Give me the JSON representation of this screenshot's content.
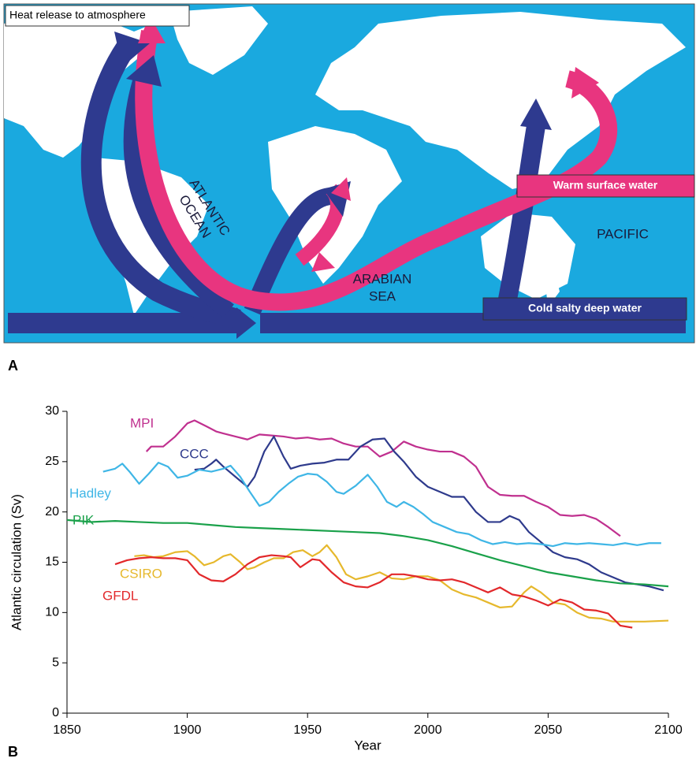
{
  "panel_labels": [
    "A",
    "B"
  ],
  "map": {
    "heat_label": "Heat release to atmosphere",
    "atlantic_label": [
      "ATLANTIC",
      "OCEAN"
    ],
    "arabian_label": [
      "ARABIAN",
      "SEA"
    ],
    "pacific_label": "PACIFIC",
    "warm_label": "Warm surface water",
    "cold_label": "Cold salty deep water"
  },
  "chart_data": {
    "type": "line",
    "x_label": "Year",
    "y_label": "Atlantic circulation (Sv)",
    "xlim": [
      1850,
      2100
    ],
    "xticks": [
      1850,
      1900,
      1950,
      2000,
      2050,
      2100
    ],
    "ylim": [
      0,
      30
    ],
    "yticks": [
      0,
      5,
      10,
      15,
      20,
      25,
      30
    ],
    "grid": false,
    "series": [
      {
        "name": "MPI",
        "color": "#c0308f",
        "x": [
          1883,
          1885,
          1890,
          1895,
          1900,
          1903,
          1908,
          1912,
          1915,
          1920,
          1925,
          1930,
          1935,
          1940,
          1945,
          1950,
          1955,
          1960,
          1965,
          1970,
          1975,
          1980,
          1985,
          1990,
          1995,
          2000,
          2005,
          2010,
          2015,
          2020,
          2025,
          2030,
          2035,
          2040,
          2045,
          2050,
          2055,
          2060,
          2065,
          2070,
          2075,
          2080
        ],
        "values": [
          26,
          26.5,
          26.5,
          27.5,
          28.8,
          29.1,
          28.5,
          28,
          27.8,
          27.5,
          27.2,
          27.7,
          27.6,
          27.5,
          27.3,
          27.4,
          27.2,
          27.3,
          26.8,
          26.5,
          26.5,
          25.5,
          26,
          27,
          26.5,
          26.2,
          26,
          26,
          25.5,
          24.5,
          22.5,
          21.7,
          21.6,
          21.6,
          21,
          20.5,
          19.7,
          19.6,
          19.7,
          19.3,
          18.5,
          17.6
        ]
      },
      {
        "name": "CCC",
        "color": "#2e3a8c",
        "x": [
          1903,
          1907,
          1910,
          1912,
          1915,
          1920,
          1925,
          1928,
          1932,
          1936,
          1940,
          1943,
          1947,
          1952,
          1957,
          1962,
          1967,
          1972,
          1977,
          1982,
          1986,
          1990,
          1995,
          2000,
          2005,
          2010,
          2015,
          2020,
          2025,
          2030,
          2034,
          2038,
          2042,
          2047,
          2052,
          2057,
          2062,
          2067,
          2072,
          2077,
          2082,
          2087,
          2092,
          2098
        ],
        "values": [
          24.2,
          24.3,
          24.8,
          25.2,
          24.5,
          23.5,
          22.5,
          23.5,
          26,
          27.5,
          25.5,
          24.3,
          24.6,
          24.8,
          24.9,
          25.2,
          25.2,
          26.5,
          27.2,
          27.3,
          26,
          25,
          23.5,
          22.5,
          22,
          21.5,
          21.5,
          20,
          19,
          19,
          19.6,
          19.2,
          18,
          17,
          16,
          15.5,
          15.3,
          14.8,
          14,
          13.5,
          13,
          12.8,
          12.6,
          12.2
        ]
      },
      {
        "name": "Hadley",
        "color": "#3fb6e6",
        "x": [
          1865,
          1870,
          1873,
          1876,
          1880,
          1884,
          1888,
          1892,
          1896,
          1900,
          1905,
          1910,
          1915,
          1918,
          1922,
          1926,
          1930,
          1934,
          1938,
          1942,
          1946,
          1950,
          1954,
          1958,
          1962,
          1965,
          1970,
          1975,
          1979,
          1983,
          1987,
          1990,
          1994,
          1998,
          2002,
          2007,
          2012,
          2017,
          2022,
          2027,
          2032,
          2037,
          2042,
          2047,
          2052,
          2057,
          2062,
          2067,
          2072,
          2077,
          2082,
          2087,
          2092,
          2097
        ],
        "values": [
          24,
          24.3,
          24.8,
          24,
          22.8,
          23.8,
          24.9,
          24.5,
          23.4,
          23.6,
          24.2,
          24,
          24.3,
          24.6,
          23.5,
          22,
          20.6,
          21,
          22,
          22.8,
          23.5,
          23.8,
          23.7,
          23,
          22,
          21.8,
          22.6,
          23.7,
          22.5,
          21,
          20.5,
          21,
          20.5,
          19.8,
          19,
          18.5,
          18,
          17.8,
          17.2,
          16.8,
          17,
          16.8,
          16.9,
          16.8,
          16.6,
          16.9,
          16.8,
          16.9,
          16.8,
          16.7,
          16.9,
          16.7,
          16.9,
          16.9
        ]
      },
      {
        "name": "PIK",
        "color": "#1aa14a",
        "x": [
          1850,
          1860,
          1870,
          1880,
          1890,
          1900,
          1910,
          1920,
          1930,
          1940,
          1950,
          1960,
          1970,
          1980,
          1990,
          2000,
          2010,
          2020,
          2030,
          2040,
          2050,
          2060,
          2070,
          2080,
          2090,
          2100
        ],
        "values": [
          19.2,
          19,
          19.1,
          19,
          18.9,
          18.9,
          18.7,
          18.5,
          18.4,
          18.3,
          18.2,
          18.1,
          18,
          17.9,
          17.6,
          17.2,
          16.6,
          15.9,
          15.2,
          14.6,
          14,
          13.6,
          13.2,
          12.9,
          12.8,
          12.6
        ]
      },
      {
        "name": "CSIRO",
        "color": "#e6b82c",
        "x": [
          1878,
          1882,
          1886,
          1890,
          1895,
          1900,
          1903,
          1907,
          1911,
          1915,
          1918,
          1922,
          1925,
          1928,
          1932,
          1936,
          1940,
          1944,
          1948,
          1952,
          1955,
          1958,
          1962,
          1966,
          1970,
          1975,
          1980,
          1985,
          1990,
          1995,
          2000,
          2005,
          2010,
          2015,
          2020,
          2025,
          2030,
          2035,
          2040,
          2043,
          2047,
          2052,
          2057,
          2062,
          2067,
          2072,
          2077,
          2082,
          2090,
          2100
        ],
        "values": [
          15.6,
          15.7,
          15.5,
          15.6,
          16,
          16.1,
          15.6,
          14.7,
          15,
          15.6,
          15.8,
          15,
          14.3,
          14.5,
          15,
          15.4,
          15.4,
          16,
          16.2,
          15.6,
          16,
          16.7,
          15.5,
          13.8,
          13.3,
          13.6,
          14,
          13.4,
          13.3,
          13.6,
          13.6,
          13.2,
          12.3,
          11.8,
          11.5,
          11,
          10.5,
          10.6,
          12,
          12.6,
          12,
          11,
          10.8,
          10,
          9.5,
          9.4,
          9.1,
          9.1,
          9.1,
          9.2
        ]
      },
      {
        "name": "GFDL",
        "color": "#e2282b",
        "x": [
          1870,
          1875,
          1880,
          1885,
          1890,
          1895,
          1900,
          1905,
          1910,
          1915,
          1920,
          1925,
          1930,
          1935,
          1940,
          1943,
          1947,
          1952,
          1955,
          1960,
          1965,
          1970,
          1975,
          1980,
          1985,
          1990,
          1995,
          2000,
          2005,
          2010,
          2015,
          2020,
          2025,
          2030,
          2035,
          2040,
          2045,
          2050,
          2055,
          2060,
          2065,
          2070,
          2075,
          2080,
          2085
        ],
        "values": [
          14.8,
          15.2,
          15.4,
          15.5,
          15.4,
          15.4,
          15.2,
          13.8,
          13.2,
          13.1,
          13.8,
          14.8,
          15.5,
          15.7,
          15.6,
          15.5,
          14.5,
          15.3,
          15.2,
          14,
          13,
          12.6,
          12.5,
          13,
          13.8,
          13.8,
          13.6,
          13.3,
          13.2,
          13.3,
          13,
          12.5,
          12,
          12.5,
          11.8,
          11.6,
          11.2,
          10.7,
          11.3,
          11,
          10.3,
          10.2,
          9.9,
          8.7,
          8.5
        ]
      }
    ]
  }
}
